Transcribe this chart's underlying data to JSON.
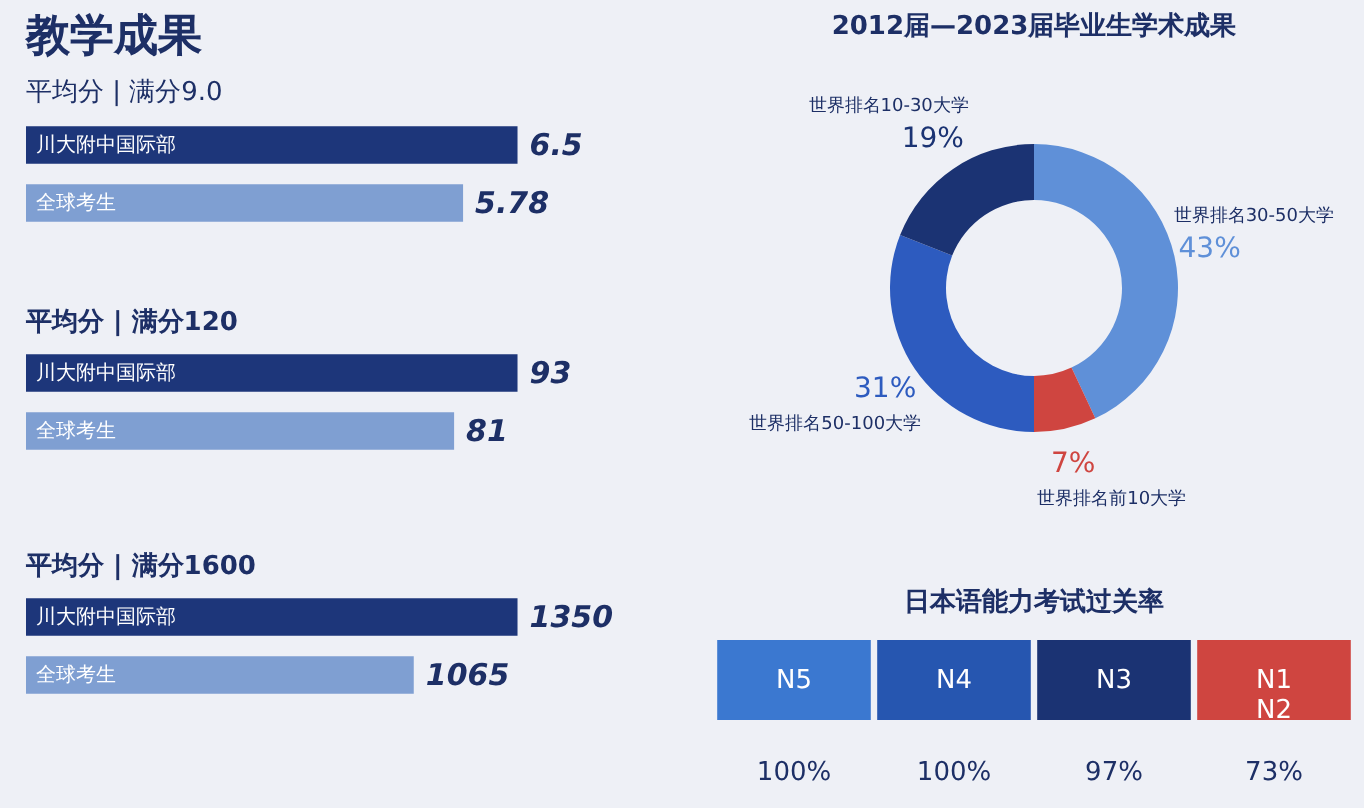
{
  "chart_data": [
    {
      "type": "bar",
      "orientation": "horizontal",
      "title": "教学成果",
      "subtitle": "平均分 | 满分9.0",
      "categories": [
        "川大附中国际部",
        "全球考生"
      ],
      "values": [
        6.5,
        5.78
      ],
      "colors": [
        "#1d367a",
        "#7f9fd2"
      ],
      "data_labels": true
    },
    {
      "type": "bar",
      "orientation": "horizontal",
      "title": "平均分 | 满分120",
      "categories": [
        "川大附中国际部",
        "全球考生"
      ],
      "values": [
        93,
        81
      ],
      "colors": [
        "#1d367a",
        "#7f9fd2"
      ],
      "data_labels": true
    },
    {
      "type": "bar",
      "orientation": "horizontal",
      "title": "平均分 | 满分1600",
      "categories": [
        "川大附中国际部",
        "全球考生"
      ],
      "values": [
        1350,
        1065
      ],
      "colors": [
        "#1d367a",
        "#7f9fd2"
      ],
      "data_labels": true
    },
    {
      "type": "donut",
      "title": "2012届—2023届毕业生学术成果",
      "categories": [
        "世界排名30-50大学",
        "世界排名前10大学",
        "世界排名50-100大学",
        "世界排名10-30大学"
      ],
      "values": [
        43,
        7,
        31,
        19
      ],
      "value_labels": [
        "43%",
        "7%",
        "31%",
        "19%"
      ],
      "colors": [
        "#5f90d8",
        "#cf4540",
        "#2d5bbf",
        "#1b3373"
      ]
    },
    {
      "type": "other",
      "title": "日本语能力考试过关率",
      "categories": [
        "N5",
        "N4",
        "N3",
        "N1\nN2"
      ],
      "values": [
        100,
        100,
        97,
        73
      ],
      "value_labels": [
        "100%",
        "100%",
        "97%",
        "73%"
      ],
      "colors": [
        "#3b78d0",
        "#2656b0",
        "#1b3373",
        "#cf4540"
      ]
    }
  ]
}
